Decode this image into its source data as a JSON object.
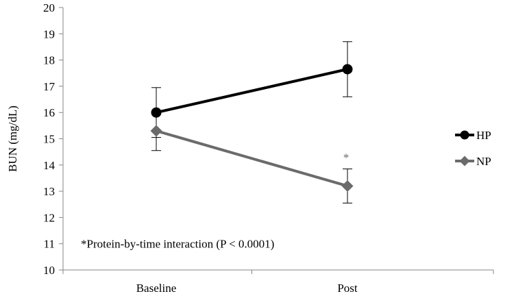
{
  "chart_data": {
    "type": "line",
    "title": "",
    "xlabel": "",
    "ylabel": "BUN (mg/dL)",
    "categories": [
      "Baseline",
      "Post"
    ],
    "ylim": [
      10,
      20
    ],
    "yticks": [
      10,
      11,
      12,
      13,
      14,
      15,
      16,
      17,
      18,
      19,
      20
    ],
    "grid": false,
    "legend_position": "right",
    "series": [
      {
        "name": "HP",
        "marker": "circle",
        "color": "#000000",
        "values": [
          16.0,
          17.65
        ],
        "error": [
          0.95,
          1.05
        ]
      },
      {
        "name": "NP",
        "marker": "diamond",
        "color": "#6b6b6b",
        "values": [
          15.3,
          13.2
        ],
        "error": [
          0.75,
          0.65
        ]
      }
    ],
    "significance": {
      "category_index": 1,
      "text": "*"
    },
    "annotation": "*Protein-by-time interaction (P < 0.0001)"
  }
}
